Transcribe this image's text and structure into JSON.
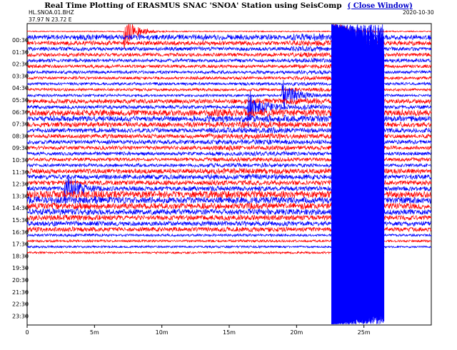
{
  "header": {
    "title": "Real Time Plotting of ERASMUS SNAC 'SNOA' Station using SeisComp",
    "close_link": "( Close Window)",
    "station_code": "HL.SNOA.01.BHZ",
    "coordinates": "37.97 N 23.72 E",
    "date": "2020-10-30"
  },
  "chart_data": {
    "type": "line",
    "title": "Real Time Plotting of ERASMUS SNAC 'SNOA' Station using SeisComp",
    "xlabel": "",
    "ylabel": "",
    "x_range_minutes": [
      0,
      30
    ],
    "x_ticks": [
      {
        "value": 0,
        "label": "0"
      },
      {
        "value": 5,
        "label": "5m"
      },
      {
        "value": 10,
        "label": "10m"
      },
      {
        "value": 15,
        "label": "15m"
      },
      {
        "value": 20,
        "label": "20m"
      },
      {
        "value": 25,
        "label": "25m"
      }
    ],
    "y_ticks": [
      "00:30",
      "01:30",
      "02:30",
      "03:30",
      "04:30",
      "05:30",
      "06:30",
      "07:30",
      "08:30",
      "09:30",
      "10:30",
      "11:30",
      "12:30",
      "13:30",
      "14:30",
      "15:30",
      "16:30",
      "17:30",
      "18:30",
      "19:30",
      "20:30",
      "21:30",
      "22:30",
      "23:30"
    ],
    "trace_colors": {
      "odd": "#ff0000",
      "even": "#0000ff"
    },
    "trace_count": 39,
    "last_trace_end_minute": 26.5,
    "events": [
      {
        "minute": 7.2,
        "start_trace": 0,
        "decay_traces": 1,
        "amplitude": 1.0
      },
      {
        "minute": 18.9,
        "start_trace": 11,
        "decay_traces": 4,
        "amplitude": 1.0
      },
      {
        "minute": 2.7,
        "start_trace": 27,
        "decay_traces": 10,
        "amplitude": 1.0
      },
      {
        "minute": 16.4,
        "start_trace": 13,
        "decay_traces": 28,
        "amplitude": 1.0
      },
      {
        "minute": 22.6,
        "start_trace": 0,
        "decay_traces": 30,
        "amplitude": 1.0
      }
    ]
  }
}
